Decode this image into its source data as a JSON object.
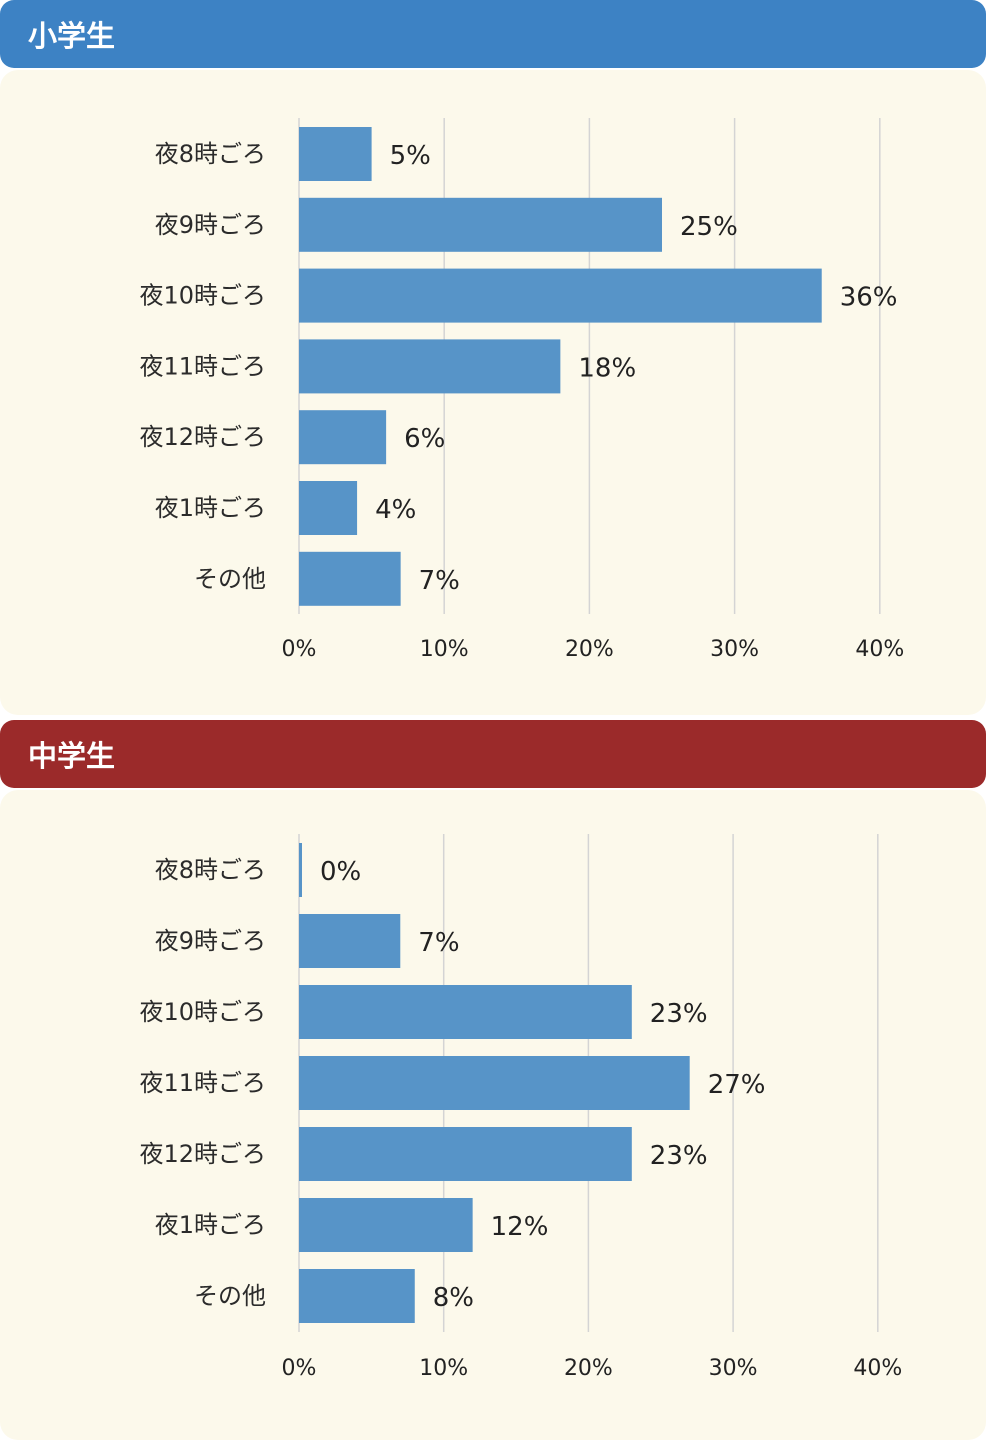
{
  "colors": {
    "elementary_header": "#3d82c4",
    "junior_header": "#9b2a2a",
    "panel_bg": "#fcf9eb",
    "bar": "#5794c8",
    "grid": "#d4d4d4"
  },
  "chart_data": [
    {
      "type": "bar",
      "orientation": "horizontal",
      "title": "小学生",
      "categories": [
        "夜8時ごろ",
        "夜9時ごろ",
        "夜10時ごろ",
        "夜11時ごろ",
        "夜12時ごろ",
        "夜1時ごろ",
        "その他"
      ],
      "values": [
        5,
        25,
        36,
        18,
        6,
        4,
        7
      ],
      "value_labels": [
        "5%",
        "25%",
        "36%",
        "18%",
        "6%",
        "4%",
        "7%"
      ],
      "xlim": [
        0,
        40
      ],
      "xticks": [
        "0%",
        "10%",
        "20%",
        "30%",
        "40%"
      ],
      "grid": true
    },
    {
      "type": "bar",
      "orientation": "horizontal",
      "title": "中学生",
      "categories": [
        "夜8時ごろ",
        "夜9時ごろ",
        "夜10時ごろ",
        "夜11時ごろ",
        "夜12時ごろ",
        "夜1時ごろ",
        "その他"
      ],
      "values": [
        0,
        7,
        23,
        27,
        23,
        12,
        8
      ],
      "value_labels": [
        "0%",
        "7%",
        "23%",
        "27%",
        "23%",
        "12%",
        "8%"
      ],
      "xlim": [
        0,
        40
      ],
      "xticks": [
        "0%",
        "10%",
        "20%",
        "30%",
        "40%"
      ],
      "grid": true
    }
  ]
}
